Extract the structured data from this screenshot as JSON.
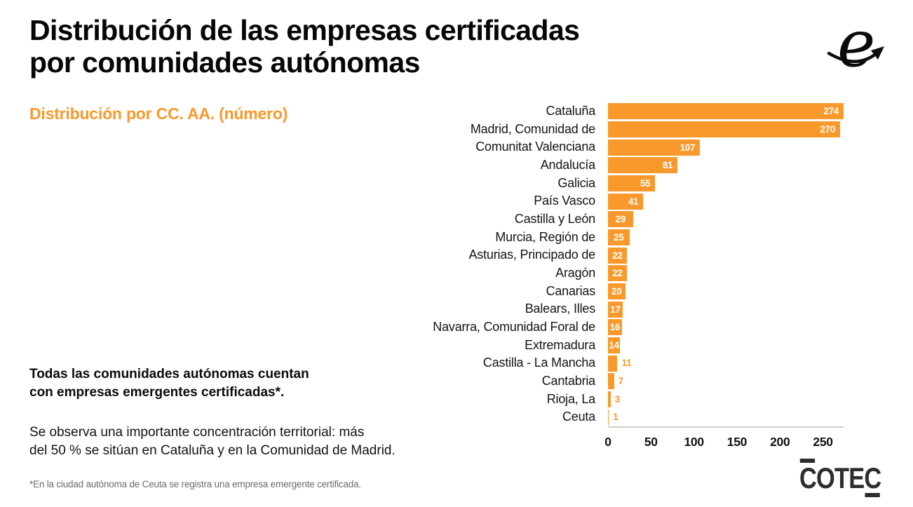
{
  "header": {
    "title_line1": "Distribución de las empresas certificadas",
    "title_line2": "por comunidades autónomas",
    "subtitle": "Distribución por CC. AA. (número)"
  },
  "notes": {
    "bold": "Todas las comunidades autónomas cuentan\ncon empresas emergentes certificadas*.",
    "regular": "Se observa una importante concentración territorial: más\ndel 50 % se sitúan en Cataluña y en la Comunidad de Madrid.",
    "footnote": "*En la ciudad autónoma de Ceuta se registra una empresa emergente certificada."
  },
  "logos": {
    "e_script": "script-e-with-arrow",
    "cotec": {
      "first": "C",
      "middle": "OTE",
      "last": "C"
    }
  },
  "colors": {
    "bar_orange": "#F9992B",
    "accent_orange": "#F9992B",
    "value_inside": "#FFFFFF",
    "axis_line": "#CFCFCF",
    "footnote_gray": "#6B6B6B",
    "logo_dark": "#2D2D2D"
  },
  "chart_data": {
    "type": "bar",
    "orientation": "horizontal",
    "title": "Distribución por CC. AA. (número)",
    "xlabel": "",
    "ylabel": "",
    "legend": null,
    "grid": false,
    "categories": [
      "Cataluña",
      "Madrid, Comunidad de",
      "Comunitat Valenciana",
      "Andalucía",
      "Galicia",
      "País Vasco",
      "Castilla y León",
      "Murcia, Región de",
      "Asturias, Principado de",
      "Aragón",
      "Canarias",
      "Balears, Illes",
      "Navarra, Comunidad Foral de",
      "Extremadura",
      "Castilla - La Mancha",
      "Cantabria",
      "Rioja, La",
      "Ceuta"
    ],
    "values": [
      274,
      270,
      107,
      81,
      55,
      41,
      29,
      25,
      22,
      22,
      20,
      17,
      16,
      14,
      11,
      7,
      3,
      1
    ],
    "x_ticks": [
      0,
      50,
      100,
      150,
      200,
      250
    ],
    "xlim": [
      0,
      274
    ],
    "value_label_inside_min": 14,
    "value_label_right_align_min": 40
  }
}
